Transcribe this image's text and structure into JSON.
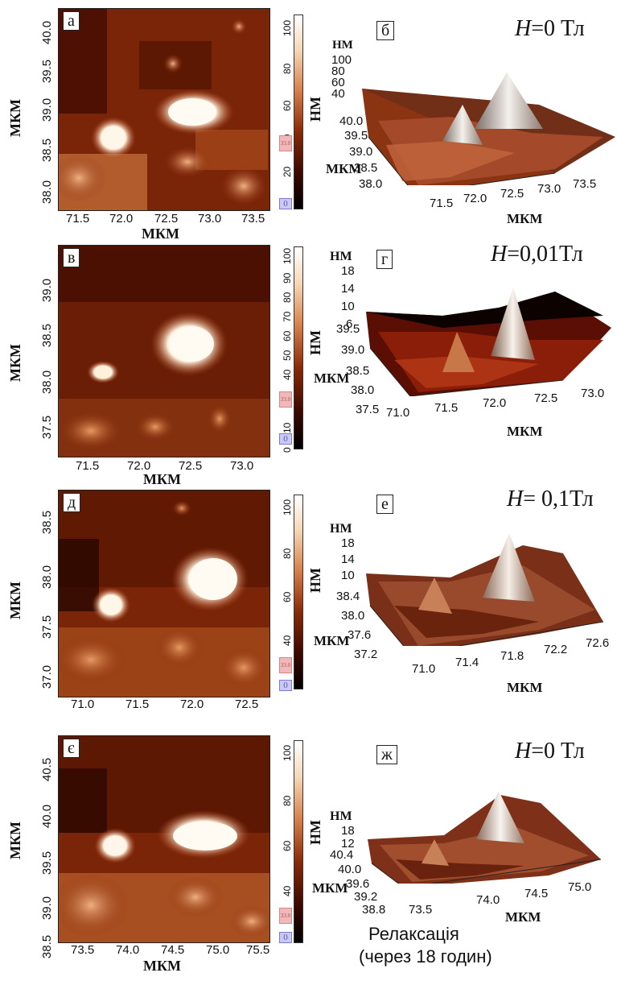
{
  "units": {
    "um": "МКМ",
    "nm": "НМ"
  },
  "panels": [
    {
      "map_letter": "а",
      "surf_letter": "б",
      "field": {
        "var": "H",
        "value": "=0 Тл"
      },
      "map_x_ticks": [
        "71.5",
        "72.0",
        "72.5",
        "73.0",
        "73.5"
      ],
      "map_y_ticks": [
        "40.0",
        "39.5",
        "39.0",
        "38.5",
        "38.0"
      ],
      "colorbar_ticks": [
        "100",
        "80",
        "60",
        "40",
        "20",
        "0"
      ],
      "colorbar_marks": [
        "33.0",
        "0"
      ],
      "surf_z_ticks": [
        "100",
        "80",
        "60",
        "40"
      ],
      "surf_y_ticks": [
        "40.0",
        "39.5",
        "39.0",
        "38.5",
        "38.0"
      ],
      "surf_x_ticks": [
        "71.5",
        "72.0",
        "72.5",
        "73.0",
        "73.5"
      ]
    },
    {
      "map_letter": "в",
      "surf_letter": "г",
      "field": {
        "var": "H",
        "value": "=0,01Тл"
      },
      "map_x_ticks": [
        "71.5",
        "72.0",
        "72.5",
        "73.0"
      ],
      "map_y_ticks": [
        "39.0",
        "38.5",
        "38.0",
        "37.5"
      ],
      "colorbar_ticks": [
        "100",
        "90",
        "80",
        "70",
        "60",
        "50",
        "40",
        "30",
        "20",
        "10",
        "0"
      ],
      "colorbar_marks": [
        "33.0",
        "0"
      ],
      "surf_z_ticks": [
        "18",
        "14",
        "10",
        "6"
      ],
      "surf_y_ticks": [
        "39.5",
        "39.0",
        "38.5",
        "38.0",
        "37.5"
      ],
      "surf_x_ticks": [
        "71.0",
        "71.5",
        "72.0",
        "72.5",
        "73.0"
      ]
    },
    {
      "map_letter": "д",
      "surf_letter": "е",
      "field": {
        "var": "H",
        "value": "= 0,1Тл"
      },
      "map_x_ticks": [
        "71.0",
        "71.5",
        "72.0",
        "72.5"
      ],
      "map_y_ticks": [
        "38.5",
        "38.0",
        "37.5",
        "37.0"
      ],
      "colorbar_ticks": [
        "100",
        "80",
        "60",
        "40"
      ],
      "colorbar_marks": [
        "33.0",
        "0"
      ],
      "surf_z_ticks": [
        "18",
        "14",
        "10"
      ],
      "surf_y_ticks": [
        "38.4",
        "38.0",
        "37.6",
        "37.2"
      ],
      "surf_x_ticks": [
        "71.0",
        "71.4",
        "71.8",
        "72.2",
        "72.6"
      ]
    },
    {
      "map_letter": "є",
      "surf_letter": "ж",
      "field": {
        "var": "H",
        "value": "=0 Тл"
      },
      "map_x_ticks": [
        "73.5",
        "74.0",
        "74.5",
        "75.0",
        "75.5"
      ],
      "map_y_ticks": [
        "40.5",
        "40.0",
        "39.5",
        "39.0",
        "38.5"
      ],
      "colorbar_ticks": [
        "100",
        "80",
        "60",
        "40"
      ],
      "colorbar_marks": [
        "33.0",
        "0"
      ],
      "surf_z_ticks": [
        "18",
        "12"
      ],
      "surf_y_ticks": [
        "40.4",
        "40.0",
        "39.6",
        "39.2",
        "38.8"
      ],
      "surf_x_ticks": [
        "73.5",
        "74.0",
        "74.5",
        "75.0"
      ],
      "caption_line1": "Релаксація",
      "caption_line2": "(через 18 годин)"
    }
  ],
  "colors": {
    "dark": "#2a0400",
    "mid": "#9a3410",
    "light": "#e89a63",
    "peak": "#fff8ee"
  }
}
